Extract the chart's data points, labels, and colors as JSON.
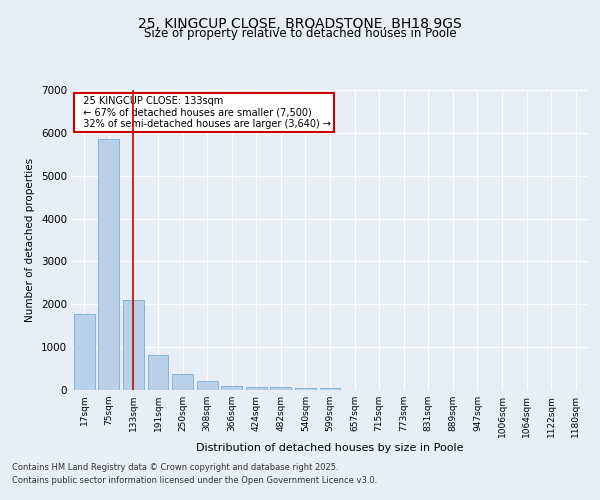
{
  "title1": "25, KINGCUP CLOSE, BROADSTONE, BH18 9GS",
  "title2": "Size of property relative to detached houses in Poole",
  "xlabel": "Distribution of detached houses by size in Poole",
  "ylabel": "Number of detached properties",
  "categories": [
    "17sqm",
    "75sqm",
    "133sqm",
    "191sqm",
    "250sqm",
    "308sqm",
    "366sqm",
    "424sqm",
    "482sqm",
    "540sqm",
    "599sqm",
    "657sqm",
    "715sqm",
    "773sqm",
    "831sqm",
    "889sqm",
    "947sqm",
    "1006sqm",
    "1064sqm",
    "1122sqm",
    "1180sqm"
  ],
  "values": [
    1780,
    5850,
    2100,
    820,
    370,
    210,
    100,
    80,
    60,
    55,
    50,
    0,
    0,
    0,
    0,
    0,
    0,
    0,
    0,
    0,
    0
  ],
  "bar_color": "#b8d0e8",
  "bar_edge_color": "#7aaed4",
  "highlight_index": 2,
  "highlight_line_color": "#cc0000",
  "annotation_text": "  25 KINGCUP CLOSE: 133sqm\n  ← 67% of detached houses are smaller (7,500)\n  32% of semi-detached houses are larger (3,640) →",
  "annotation_box_color": "#cc0000",
  "background_color": "#e8eef8",
  "ylim": [
    0,
    7000
  ],
  "footer1": "Contains HM Land Registry data © Crown copyright and database right 2025.",
  "footer2": "Contains public sector information licensed under the Open Government Licence v3.0."
}
